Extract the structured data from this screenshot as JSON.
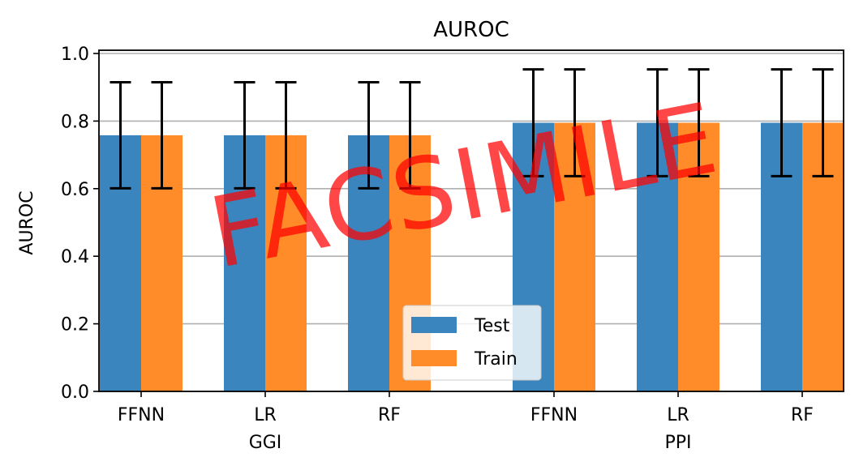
{
  "chart_data": {
    "type": "bar",
    "title": "AUROC",
    "ylabel": "AUROC",
    "xlabel": "",
    "ylim": [
      0,
      1.0
    ],
    "yticks": [
      0.0,
      0.2,
      0.4,
      0.6,
      0.8,
      1.0
    ],
    "ytick_labels": [
      "0.0",
      "0.2",
      "0.4",
      "0.6",
      "0.8",
      "1.0"
    ],
    "grid": "y",
    "groups": [
      {
        "label": "GGI",
        "categories": [
          "FFNN",
          "LR",
          "RF"
        ]
      },
      {
        "label": "PPI",
        "categories": [
          "FFNN",
          "LR",
          "RF"
        ]
      }
    ],
    "categories": [
      "FFNN",
      "LR",
      "RF",
      "FFNN",
      "LR",
      "RF"
    ],
    "series": [
      {
        "name": "Test",
        "color": "#3a85bd",
        "values": [
          0.758,
          0.758,
          0.758,
          0.795,
          0.795,
          0.795
        ],
        "error": [
          0.157,
          0.157,
          0.157,
          0.158,
          0.158,
          0.158
        ]
      },
      {
        "name": "Train",
        "color": "#ff8b29",
        "values": [
          0.758,
          0.758,
          0.758,
          0.795,
          0.795,
          0.795
        ],
        "error": [
          0.157,
          0.157,
          0.157,
          0.158,
          0.158,
          0.158
        ]
      }
    ],
    "legend_position": "bottom-center"
  },
  "watermark": {
    "text": "FACSIMILE",
    "color": "#ff0000"
  }
}
